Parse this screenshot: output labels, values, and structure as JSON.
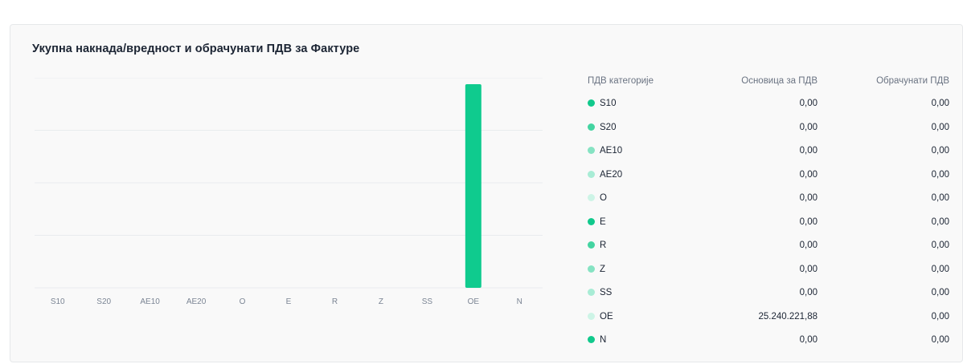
{
  "title": "Укупна накнада/вредност и обрачунати ПДВ за Фактуре",
  "table": {
    "headers": {
      "category": "ПДВ категорије",
      "base": "Основица за ПДВ",
      "vat": "Обрачунати ПДВ"
    },
    "rows": [
      {
        "cat": "S10",
        "base": "0,00",
        "vat": "0,00",
        "color": "#11c98c"
      },
      {
        "cat": "S20",
        "base": "0,00",
        "vat": "0,00",
        "color": "#44d4a1"
      },
      {
        "cat": "AE10",
        "base": "0,00",
        "vat": "0,00",
        "color": "#86e3c3"
      },
      {
        "cat": "AE20",
        "base": "0,00",
        "vat": "0,00",
        "color": "#a8ecd5"
      },
      {
        "cat": "O",
        "base": "0,00",
        "vat": "0,00",
        "color": "#cdf4e6"
      },
      {
        "cat": "E",
        "base": "0,00",
        "vat": "0,00",
        "color": "#11c98c"
      },
      {
        "cat": "R",
        "base": "0,00",
        "vat": "0,00",
        "color": "#44d4a1"
      },
      {
        "cat": "Z",
        "base": "0,00",
        "vat": "0,00",
        "color": "#86e3c3"
      },
      {
        "cat": "SS",
        "base": "0,00",
        "vat": "0,00",
        "color": "#a8ecd5"
      },
      {
        "cat": "OE",
        "base": "25.240.221,88",
        "vat": "0,00",
        "color": "#cdf4e6"
      },
      {
        "cat": "N",
        "base": "0,00",
        "vat": "0,00",
        "color": "#11c98c"
      }
    ]
  },
  "chart_data": {
    "type": "bar",
    "categories": [
      "S10",
      "S20",
      "AE10",
      "AE20",
      "O",
      "E",
      "R",
      "Z",
      "SS",
      "OE",
      "N"
    ],
    "values": [
      0,
      0,
      0,
      0,
      0,
      0,
      0,
      0,
      0,
      25240221.88,
      0
    ],
    "bar_color": "#0fcb8e",
    "grid": true,
    "ylim": [
      0,
      25240221.88
    ],
    "gridlines": 4
  }
}
